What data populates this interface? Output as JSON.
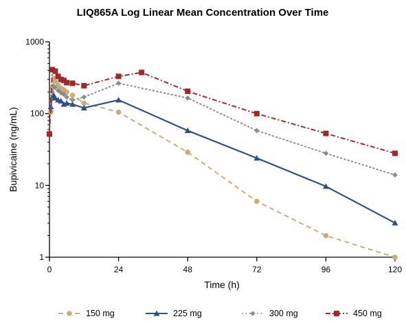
{
  "chart_data": {
    "type": "line",
    "title": "LIQ865A Log Linear Mean Concentration Over Time",
    "xlabel": "Time (h)",
    "ylabel": "Bupivicaine (ng/mL)",
    "x_scale": "linear",
    "y_scale": "log",
    "xlim": [
      0,
      120
    ],
    "ylim": [
      1,
      1000
    ],
    "x_ticks": [
      "0",
      "24",
      "48",
      "72",
      "96",
      "120"
    ],
    "y_ticks": [
      "1",
      "10",
      "100",
      "1000"
    ],
    "grid": false,
    "legend_position": "bottom",
    "series": [
      {
        "name": "150 mg",
        "color": "#C9AD78",
        "line_style": "dashed",
        "marker": "circle",
        "x": [
          0.5,
          1,
          1.5,
          2,
          3,
          4,
          5,
          6,
          8,
          12,
          24,
          48,
          72,
          96,
          120
        ],
        "y": [
          105,
          230,
          310,
          280,
          250,
          225,
          215,
          200,
          180,
          140,
          105,
          29,
          6,
          2,
          1
        ]
      },
      {
        "name": "225 mg",
        "color": "#2F4F86",
        "line_style": "solid",
        "marker": "triangle",
        "x": [
          0.5,
          1,
          1.5,
          2,
          3,
          4,
          5,
          6,
          8,
          12,
          24,
          48,
          72,
          96,
          120
        ],
        "y": [
          125,
          170,
          180,
          165,
          155,
          150,
          135,
          140,
          135,
          120,
          155,
          58,
          24,
          9.7,
          3
        ]
      },
      {
        "name": "300 mg",
        "color": "#8C8C8C",
        "line_style": "dotted",
        "marker": "diamond",
        "x": [
          0.5,
          1,
          1.5,
          2,
          3,
          4,
          5,
          6,
          8,
          12,
          24,
          48,
          72,
          96,
          120
        ],
        "y": [
          110,
          200,
          240,
          230,
          210,
          195,
          185,
          170,
          155,
          170,
          265,
          165,
          58,
          28,
          14
        ]
      },
      {
        "name": "450 mg",
        "color": "#9E2A2A",
        "line_style": "dash-dot",
        "marker": "square",
        "x": [
          0,
          1,
          2,
          3,
          4,
          5,
          6,
          8,
          12,
          24,
          32,
          48,
          72,
          96,
          120
        ],
        "y": [
          52,
          410,
          390,
          330,
          300,
          290,
          270,
          265,
          245,
          330,
          375,
          205,
          100,
          53,
          28
        ]
      }
    ]
  }
}
